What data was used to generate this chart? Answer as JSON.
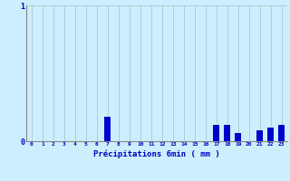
{
  "xlabel": "Précipitations 6min ( mm )",
  "hours": [
    0,
    1,
    2,
    3,
    4,
    5,
    6,
    7,
    8,
    9,
    10,
    11,
    12,
    13,
    14,
    15,
    16,
    17,
    18,
    19,
    20,
    21,
    22,
    23
  ],
  "values": [
    0,
    0,
    0,
    0,
    0,
    0,
    0,
    0.18,
    0,
    0,
    0,
    0,
    0,
    0,
    0,
    0,
    0,
    0.12,
    0.12,
    0.06,
    0,
    0.08,
    0.1,
    0.12
  ],
  "bar_color": "#0000cc",
  "bg_color": "#cceeff",
  "grid_color": "#aacccc",
  "axis_color": "#888888",
  "text_color": "#0000bb",
  "ylim": [
    0,
    1.0
  ],
  "yticks": [
    0,
    1
  ],
  "bar_width": 0.6
}
